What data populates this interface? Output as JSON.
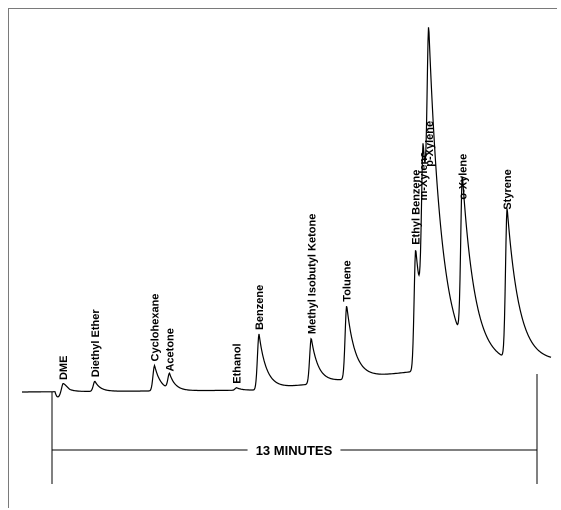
{
  "chart_data": {
    "type": "line",
    "title": "",
    "xlabel": "",
    "ylabel": "",
    "duration_label": "13 MINUTES",
    "duration_minutes": 13,
    "grid": false,
    "legend": "none",
    "trace_color": "#000000",
    "peaks": [
      {
        "name": "DME",
        "t": 0.3,
        "h": 3
      },
      {
        "name": "Diethyl Ether",
        "t": 1.15,
        "h": 4
      },
      {
        "name": "Cyclohexane",
        "t": 2.75,
        "h": 10
      },
      {
        "name": "Acetone",
        "t": 3.15,
        "h": 6
      },
      {
        "name": "Ethanol",
        "t": 4.95,
        "h": 1
      },
      {
        "name": "Benzene",
        "t": 5.55,
        "h": 22
      },
      {
        "name": "Methyl Isobutyl Ketone",
        "t": 6.95,
        "h": 18
      },
      {
        "name": "Toluene",
        "t": 7.9,
        "h": 29
      },
      {
        "name": "Ethyl Benzene",
        "t": 9.75,
        "h": 48
      },
      {
        "name": "m-Xylene",
        "t": 9.95,
        "h": 65
      },
      {
        "name": "p-Xylene",
        "t": 10.1,
        "h": 78
      },
      {
        "name": "o-Xylene",
        "t": 11.0,
        "h": 64
      },
      {
        "name": "Styrene",
        "t": 12.2,
        "h": 59
      }
    ]
  }
}
